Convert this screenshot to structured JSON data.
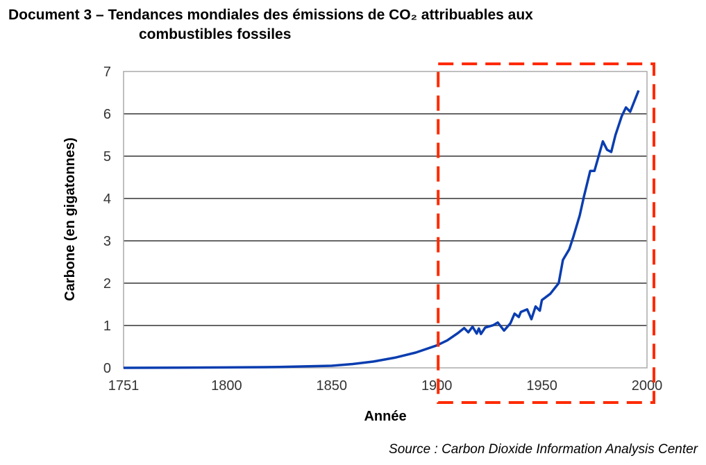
{
  "title_line1": "Document 3 – Tendances mondiales des émissions de CO₂ attribuables aux",
  "title_line2": "combustibles fossiles",
  "source": "Source : Carbon Dioxide Information Analysis Center",
  "chart_data": {
    "type": "line",
    "title": "Tendances mondiales des émissions de CO₂ attribuables aux combustibles fossiles",
    "xlabel": "Année",
    "ylabel": "Carbone (en gigatonnes)",
    "xlim": [
      1751,
      2000
    ],
    "ylim": [
      0,
      7
    ],
    "xticks": [
      "1751",
      "1800",
      "1850",
      "1900",
      "1950",
      "2000"
    ],
    "yticks": [
      "0",
      "1",
      "2",
      "3",
      "4",
      "5",
      "6",
      "7"
    ],
    "grid": "horizontal",
    "highlight": {
      "from": 1900,
      "to": 2000,
      "style": "red-dashed-box",
      "color": "#ff2a00"
    },
    "series": [
      {
        "name": "Carbone",
        "color": "#0a3db0",
        "x": [
          1751,
          1800,
          1825,
          1850,
          1860,
          1870,
          1880,
          1890,
          1900,
          1905,
          1910,
          1913,
          1915,
          1917,
          1919,
          1920,
          1921,
          1923,
          1927,
          1929,
          1932,
          1935,
          1937,
          1939,
          1940,
          1943,
          1945,
          1947,
          1949,
          1950,
          1954,
          1958,
          1960,
          1963,
          1965,
          1968,
          1970,
          1973,
          1975,
          1979,
          1981,
          1983,
          1985,
          1988,
          1990,
          1992,
          1996
        ],
        "y": [
          0,
          0.01,
          0.02,
          0.05,
          0.09,
          0.15,
          0.24,
          0.36,
          0.53,
          0.65,
          0.82,
          0.94,
          0.84,
          0.97,
          0.81,
          0.93,
          0.8,
          0.95,
          1.01,
          1.07,
          0.88,
          1.05,
          1.28,
          1.2,
          1.32,
          1.38,
          1.15,
          1.45,
          1.35,
          1.6,
          1.75,
          2.0,
          2.55,
          2.8,
          3.1,
          3.6,
          4.05,
          4.65,
          4.65,
          5.35,
          5.15,
          5.1,
          5.5,
          5.95,
          6.15,
          6.05,
          6.55
        ]
      }
    ]
  }
}
